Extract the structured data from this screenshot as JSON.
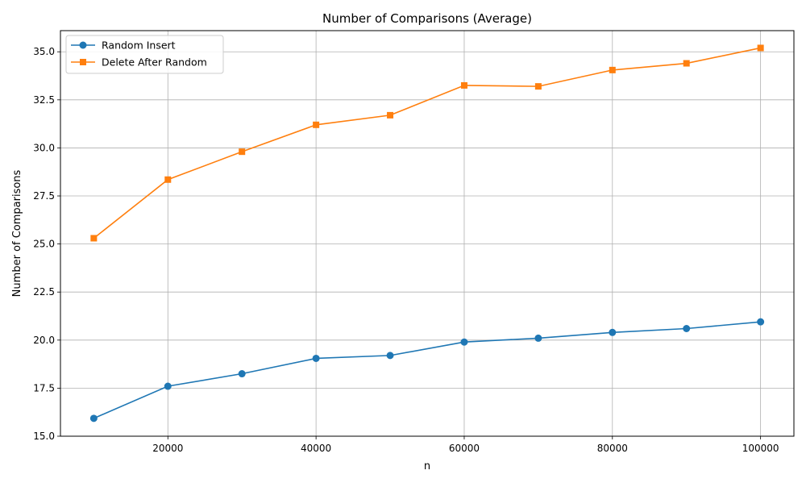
{
  "chart_data": {
    "type": "line",
    "title": "Number of Comparisons (Average)",
    "xlabel": "n",
    "ylabel": "Number of Comparisons",
    "x": [
      10000,
      20000,
      30000,
      40000,
      50000,
      60000,
      70000,
      80000,
      90000,
      100000
    ],
    "xlim": [
      5500,
      104500
    ],
    "ylim": [
      15.0,
      36.1
    ],
    "x_ticks": [
      20000,
      40000,
      60000,
      80000,
      100000
    ],
    "x_tick_labels": [
      "20000",
      "40000",
      "60000",
      "80000",
      "100000"
    ],
    "y_ticks": [
      15.0,
      17.5,
      20.0,
      22.5,
      25.0,
      27.5,
      30.0,
      32.5,
      35.0
    ],
    "y_tick_labels": [
      "15.0",
      "17.5",
      "20.0",
      "22.5",
      "25.0",
      "27.5",
      "30.0",
      "32.5",
      "35.0"
    ],
    "grid": true,
    "legend_position": "top-left",
    "series": [
      {
        "name": "Random Insert",
        "color": "#1f77b4",
        "marker": "circle",
        "values": [
          15.93,
          17.6,
          18.25,
          19.05,
          19.2,
          19.9,
          20.1,
          20.4,
          20.6,
          20.95
        ]
      },
      {
        "name": "Delete After Random",
        "color": "#ff7f0e",
        "marker": "square",
        "values": [
          25.3,
          28.35,
          29.8,
          31.2,
          31.7,
          33.25,
          33.2,
          34.05,
          34.4,
          35.2
        ]
      }
    ]
  }
}
